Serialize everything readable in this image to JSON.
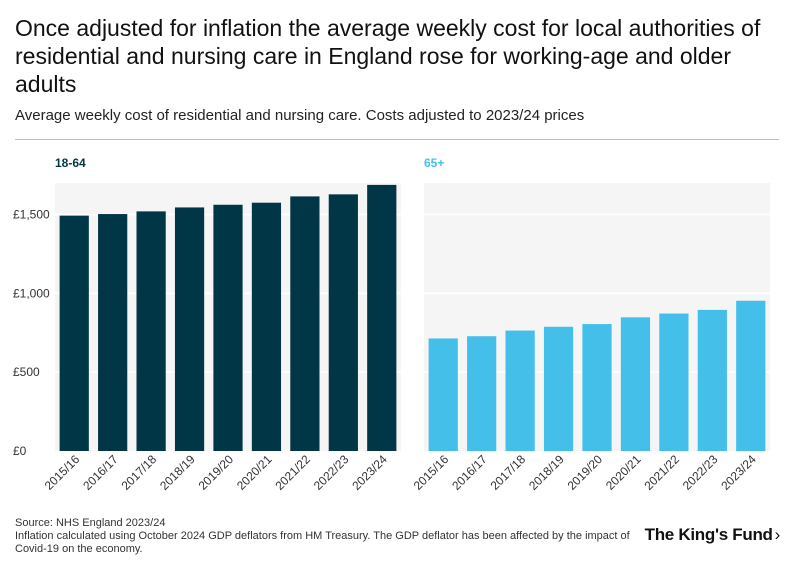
{
  "title": "Once adjusted for inflation the average weekly cost for local authorities of residential and nursing care in England rose for working-age and older adults",
  "subtitle": "Average weekly cost of residential and nursing care. Costs adjusted to 2023/24 prices",
  "source": "Source: NHS England 2023/24",
  "note": "Inflation calculated using October 2024 GDP deflators from HM Treasury. The GDP deflator has been affected by the impact of Covid-19 on the economy.",
  "logo": {
    "text": "The King's Fund",
    "chevron": "›"
  },
  "colors": {
    "series_18_64": "#003645",
    "series_65_plus": "#44bfe9",
    "panel_bg": "#f5f5f5",
    "grid": "#ffffff"
  },
  "chart_data": [
    {
      "type": "bar",
      "title": "18-64",
      "categories": [
        "2015/16",
        "2016/17",
        "2017/18",
        "2018/19",
        "2019/20",
        "2020/21",
        "2021/22",
        "2022/23",
        "2023/24"
      ],
      "values": [
        1493,
        1503,
        1520,
        1545,
        1562,
        1575,
        1615,
        1628,
        1688
      ],
      "ylim": [
        0,
        1700
      ],
      "yticks": [
        0,
        500,
        1000,
        1500
      ],
      "ytick_labels": [
        "£0",
        "£500",
        "£1,000",
        "£1,500"
      ],
      "xlabel": "",
      "ylabel": ""
    },
    {
      "type": "bar",
      "title": "65+",
      "categories": [
        "2015/16",
        "2016/17",
        "2017/18",
        "2018/19",
        "2019/20",
        "2020/21",
        "2021/22",
        "2022/23",
        "2023/24"
      ],
      "values": [
        714,
        728,
        764,
        788,
        805,
        848,
        872,
        895,
        953
      ],
      "ylim": [
        0,
        1700
      ],
      "yticks": [
        0,
        500,
        1000,
        1500
      ],
      "xlabel": "",
      "ylabel": ""
    }
  ]
}
